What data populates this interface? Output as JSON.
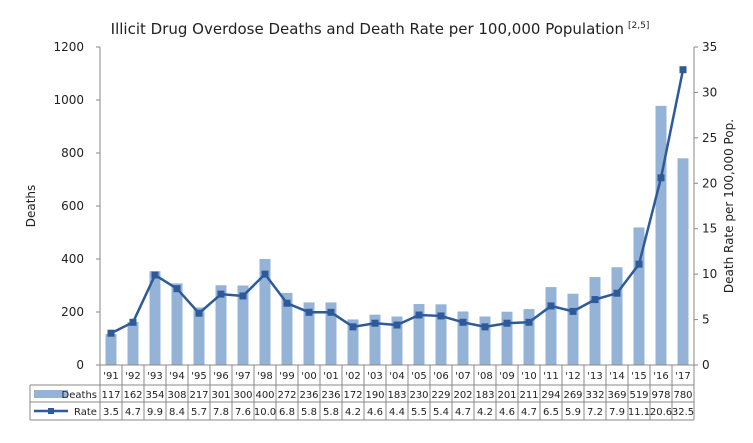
{
  "chart_data": {
    "type": "bar+line",
    "title": "Illicit Drug Overdose Deaths and Death Rate per 100,000 Population",
    "title_superscript": "[2,5]",
    "ylabel_left": "Deaths",
    "ylabel_right": "Death Rate per 100,000 Pop.",
    "ylim_left": [
      0,
      1200
    ],
    "yticks_left": [
      0,
      200,
      400,
      600,
      800,
      1000,
      1200
    ],
    "ylim_right": [
      0,
      35
    ],
    "yticks_right": [
      0,
      5,
      10,
      15,
      20,
      25,
      30,
      35
    ],
    "grid": false,
    "legend": "data-table",
    "categories": [
      "'91",
      "'92",
      "'93",
      "'94",
      "'95",
      "'96",
      "'97",
      "'98",
      "'99",
      "'00",
      "'01",
      "'02",
      "'03",
      "'04",
      "'05",
      "'06",
      "'07",
      "'08",
      "'09",
      "'10",
      "'11",
      "'12",
      "'13",
      "'14",
      "'15",
      "'16",
      "'17"
    ],
    "series": [
      {
        "name": "Deaths",
        "type": "bar",
        "axis": "left",
        "color": "#95B3D7",
        "values": [
          117,
          162,
          354,
          308,
          217,
          301,
          300,
          400,
          272,
          236,
          236,
          172,
          190,
          183,
          230,
          229,
          202,
          183,
          201,
          211,
          294,
          269,
          332,
          369,
          519,
          978,
          780
        ]
      },
      {
        "name": "Rate",
        "type": "line",
        "axis": "right",
        "color": "#2E5A9A",
        "values": [
          "3.5",
          "4.7",
          "9.9",
          "8.4",
          "5.7",
          "7.8",
          "7.6",
          "10.0",
          "6.8",
          "5.8",
          "5.8",
          "4.2",
          "4.6",
          "4.4",
          "5.5",
          "5.4",
          "4.7",
          "4.2",
          "4.6",
          "4.7",
          "6.5",
          "5.9",
          "7.2",
          "7.9",
          "11.1",
          "20.6",
          "32.5"
        ]
      }
    ]
  }
}
